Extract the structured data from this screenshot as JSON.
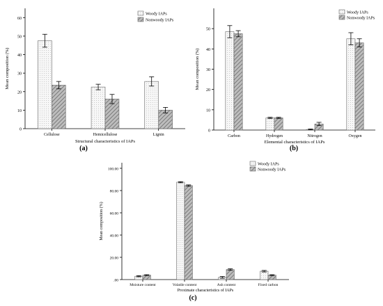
{
  "chart_data": [
    {
      "type": "bar",
      "panel_label": "(a)",
      "xlabel": "Structural characteristics of IAPs",
      "ylabel": "Mean composition (%)",
      "ylim": [
        0,
        65
      ],
      "yticks": [
        "0",
        "10",
        "20",
        "30",
        "40",
        "50",
        "60"
      ],
      "yticks_values": [
        0,
        10,
        20,
        30,
        40,
        50,
        60
      ],
      "categories": [
        "Cellulose",
        "Hemicellulose",
        "Lignin"
      ],
      "series": [
        {
          "name": "Woody IAPs",
          "values": [
            47.5,
            22.5,
            25.5
          ],
          "errors": [
            3.5,
            1.5,
            2.5
          ]
        },
        {
          "name": "Nonwoody IAPs",
          "values": [
            23.5,
            16.0,
            10.0
          ],
          "errors": [
            2.0,
            2.5,
            1.5
          ]
        }
      ],
      "legend": "top-right"
    },
    {
      "type": "bar",
      "panel_label": "(b)",
      "xlabel": "Elemental characteristics of IAPs",
      "ylabel": "Mean composition (%)",
      "ylim": [
        0,
        60
      ],
      "yticks": [
        "0",
        "10",
        "20",
        "30",
        "40",
        "50"
      ],
      "yticks_values": [
        0,
        10,
        20,
        30,
        40,
        50
      ],
      "categories": [
        "Carbon",
        "Hydrogen",
        "Nitrogen",
        "Oxygen"
      ],
      "series": [
        {
          "name": "Woody IAPs",
          "values": [
            48.5,
            6.0,
            0.3,
            45.0
          ],
          "errors": [
            3.0,
            0.3,
            0.2,
            3.0
          ]
        },
        {
          "name": "Nonwoody IAPs",
          "values": [
            47.5,
            6.0,
            3.0,
            43.0
          ],
          "errors": [
            1.5,
            0.3,
            0.8,
            2.0
          ]
        }
      ],
      "legend": "top-right"
    },
    {
      "type": "bar",
      "panel_label": "(c)",
      "xlabel": "Proximate characteristics of IAPs",
      "ylabel": "Mean composition (%)",
      "ylim": [
        0,
        105
      ],
      "yticks": [
        ".00",
        "20.00",
        "40.00",
        "60.00",
        "80.00",
        "100.00"
      ],
      "yticks_values": [
        0,
        20,
        40,
        60,
        80,
        100
      ],
      "categories": [
        "Moisture content",
        "Volatile content",
        "Ash content",
        "Fixed carbon"
      ],
      "series": [
        {
          "name": "Woody IAPs",
          "values": [
            3.0,
            87.5,
            2.0,
            7.5
          ],
          "errors": [
            0.5,
            0.5,
            0.8,
            0.7
          ]
        },
        {
          "name": "Nonwoody IAPs",
          "values": [
            4.0,
            84.5,
            9.0,
            4.0
          ],
          "errors": [
            0.4,
            0.6,
            0.7,
            0.4
          ]
        }
      ],
      "legend": "top-right"
    }
  ]
}
